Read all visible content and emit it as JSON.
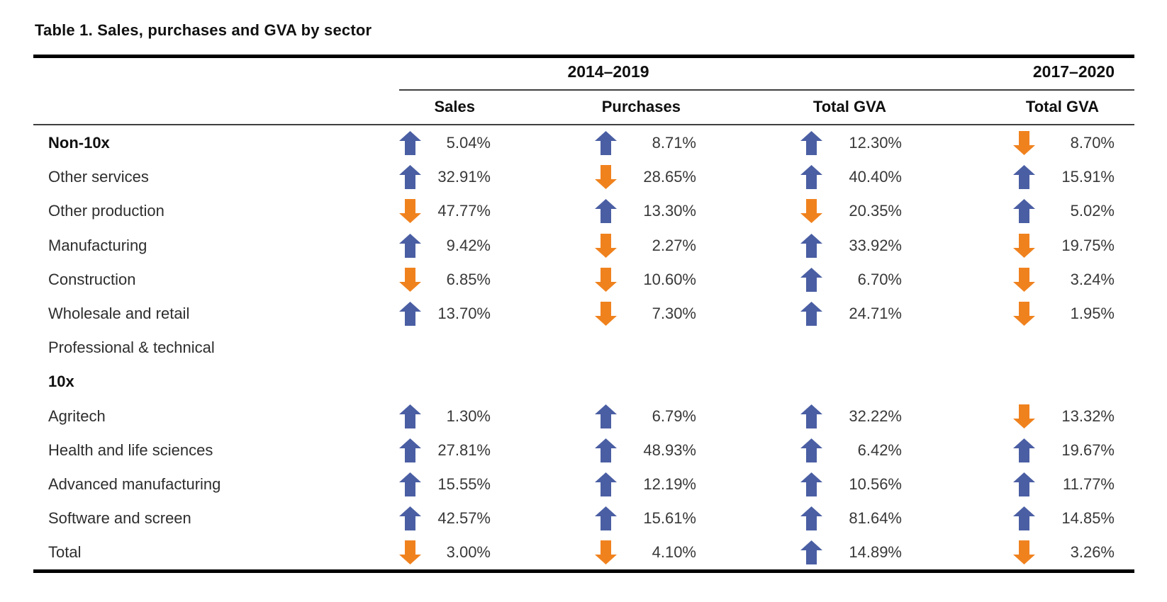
{
  "title": "Table 1. Sales, purchases and GVA by sector",
  "colors": {
    "up_arrow": "#4A5EA3",
    "down_arrow": "#F0821E",
    "rule": "#000000"
  },
  "icons": {
    "up": "trend-up-icon",
    "down": "trend-down-icon"
  },
  "table": {
    "column_groups": [
      {
        "label": "2014–2019",
        "columns_spanned": 3
      },
      {
        "label": "2017–2020",
        "columns_spanned": 1
      }
    ],
    "columns": [
      "Sales",
      "Purchases",
      "Total GVA",
      "Total GVA"
    ],
    "rows": [
      {
        "label": "Non-10x",
        "bold": true,
        "cells": [
          {
            "trend": "up",
            "value": "5.04%"
          },
          {
            "trend": "up",
            "value": "8.71%"
          },
          {
            "trend": "up",
            "value": "12.30%"
          },
          {
            "trend": "down",
            "value": "8.70%"
          }
        ]
      },
      {
        "label": "Other services",
        "bold": false,
        "cells": [
          {
            "trend": "up",
            "value": "32.91%"
          },
          {
            "trend": "down",
            "value": "28.65%"
          },
          {
            "trend": "up",
            "value": "40.40%"
          },
          {
            "trend": "up",
            "value": "15.91%"
          }
        ]
      },
      {
        "label": "Other production",
        "bold": false,
        "cells": [
          {
            "trend": "down",
            "value": "47.77%"
          },
          {
            "trend": "up",
            "value": "13.30%"
          },
          {
            "trend": "down",
            "value": "20.35%"
          },
          {
            "trend": "up",
            "value": "5.02%"
          }
        ]
      },
      {
        "label": "Manufacturing",
        "bold": false,
        "cells": [
          {
            "trend": "up",
            "value": "9.42%"
          },
          {
            "trend": "down",
            "value": "2.27%"
          },
          {
            "trend": "up",
            "value": "33.92%"
          },
          {
            "trend": "down",
            "value": "19.75%"
          }
        ]
      },
      {
        "label": "Construction",
        "bold": false,
        "cells": [
          {
            "trend": "down",
            "value": "6.85%"
          },
          {
            "trend": "down",
            "value": "10.60%"
          },
          {
            "trend": "up",
            "value": "6.70%"
          },
          {
            "trend": "down",
            "value": "3.24%"
          }
        ]
      },
      {
        "label": "Wholesale and retail",
        "bold": false,
        "cells": [
          {
            "trend": "up",
            "value": "13.70%"
          },
          {
            "trend": "down",
            "value": "7.30%"
          },
          {
            "trend": "up",
            "value": "24.71%"
          },
          {
            "trend": "down",
            "value": "1.95%"
          }
        ]
      },
      {
        "label": "Professional & technical",
        "bold": false,
        "cells": [
          null,
          null,
          null,
          null
        ]
      },
      {
        "label": "10x",
        "bold": true,
        "cells": [
          null,
          null,
          null,
          null
        ]
      },
      {
        "label": "Agritech",
        "bold": false,
        "cells": [
          {
            "trend": "up",
            "value": "1.30%"
          },
          {
            "trend": "up",
            "value": "6.79%"
          },
          {
            "trend": "up",
            "value": "32.22%"
          },
          {
            "trend": "down",
            "value": "13.32%"
          }
        ]
      },
      {
        "label": "Health and life sciences",
        "bold": false,
        "cells": [
          {
            "trend": "up",
            "value": "27.81%"
          },
          {
            "trend": "up",
            "value": "48.93%"
          },
          {
            "trend": "up",
            "value": "6.42%"
          },
          {
            "trend": "up",
            "value": "19.67%"
          }
        ]
      },
      {
        "label": "Advanced manufacturing",
        "bold": false,
        "cells": [
          {
            "trend": "up",
            "value": "15.55%"
          },
          {
            "trend": "up",
            "value": "12.19%"
          },
          {
            "trend": "up",
            "value": "10.56%"
          },
          {
            "trend": "up",
            "value": "11.77%"
          }
        ]
      },
      {
        "label": "Software and screen",
        "bold": false,
        "cells": [
          {
            "trend": "up",
            "value": "42.57%"
          },
          {
            "trend": "up",
            "value": "15.61%"
          },
          {
            "trend": "up",
            "value": "81.64%"
          },
          {
            "trend": "up",
            "value": "14.85%"
          }
        ]
      },
      {
        "label": "Total",
        "bold": false,
        "cells": [
          {
            "trend": "down",
            "value": "3.00%"
          },
          {
            "trend": "down",
            "value": "4.10%"
          },
          {
            "trend": "up",
            "value": "14.89%"
          },
          {
            "trend": "down",
            "value": "3.26%"
          }
        ]
      }
    ]
  }
}
